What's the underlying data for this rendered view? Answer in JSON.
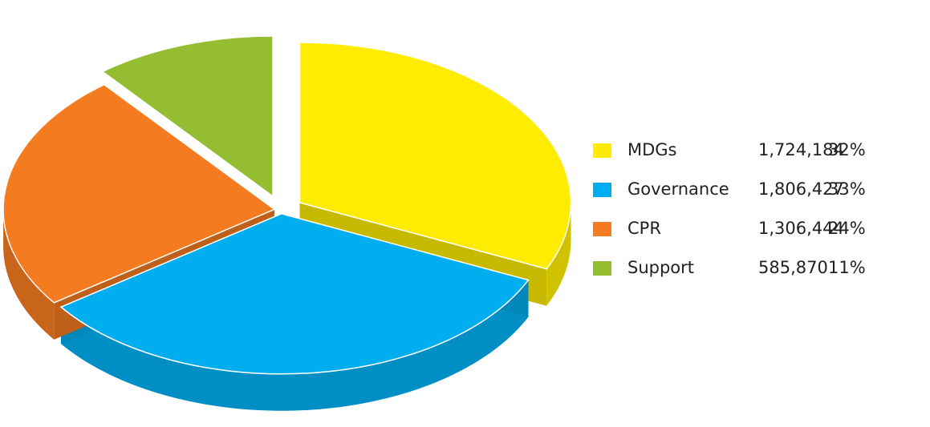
{
  "chart_data": {
    "type": "pie",
    "categories": [
      "MDGs",
      "Governance",
      "CPR",
      "Support"
    ],
    "values": [
      1724184,
      1806427,
      1306444,
      585870
    ],
    "value_labels": [
      "1,724,184",
      "1,806,427",
      "1,306,444",
      "585,870"
    ],
    "percentages": [
      32,
      33,
      24,
      11
    ],
    "percent_labels": [
      "32%",
      "33%",
      "24%",
      "11%"
    ],
    "colors": [
      "#ffec00",
      "#00aeef",
      "#f47b20",
      "#95bd31"
    ],
    "legend": "right"
  }
}
